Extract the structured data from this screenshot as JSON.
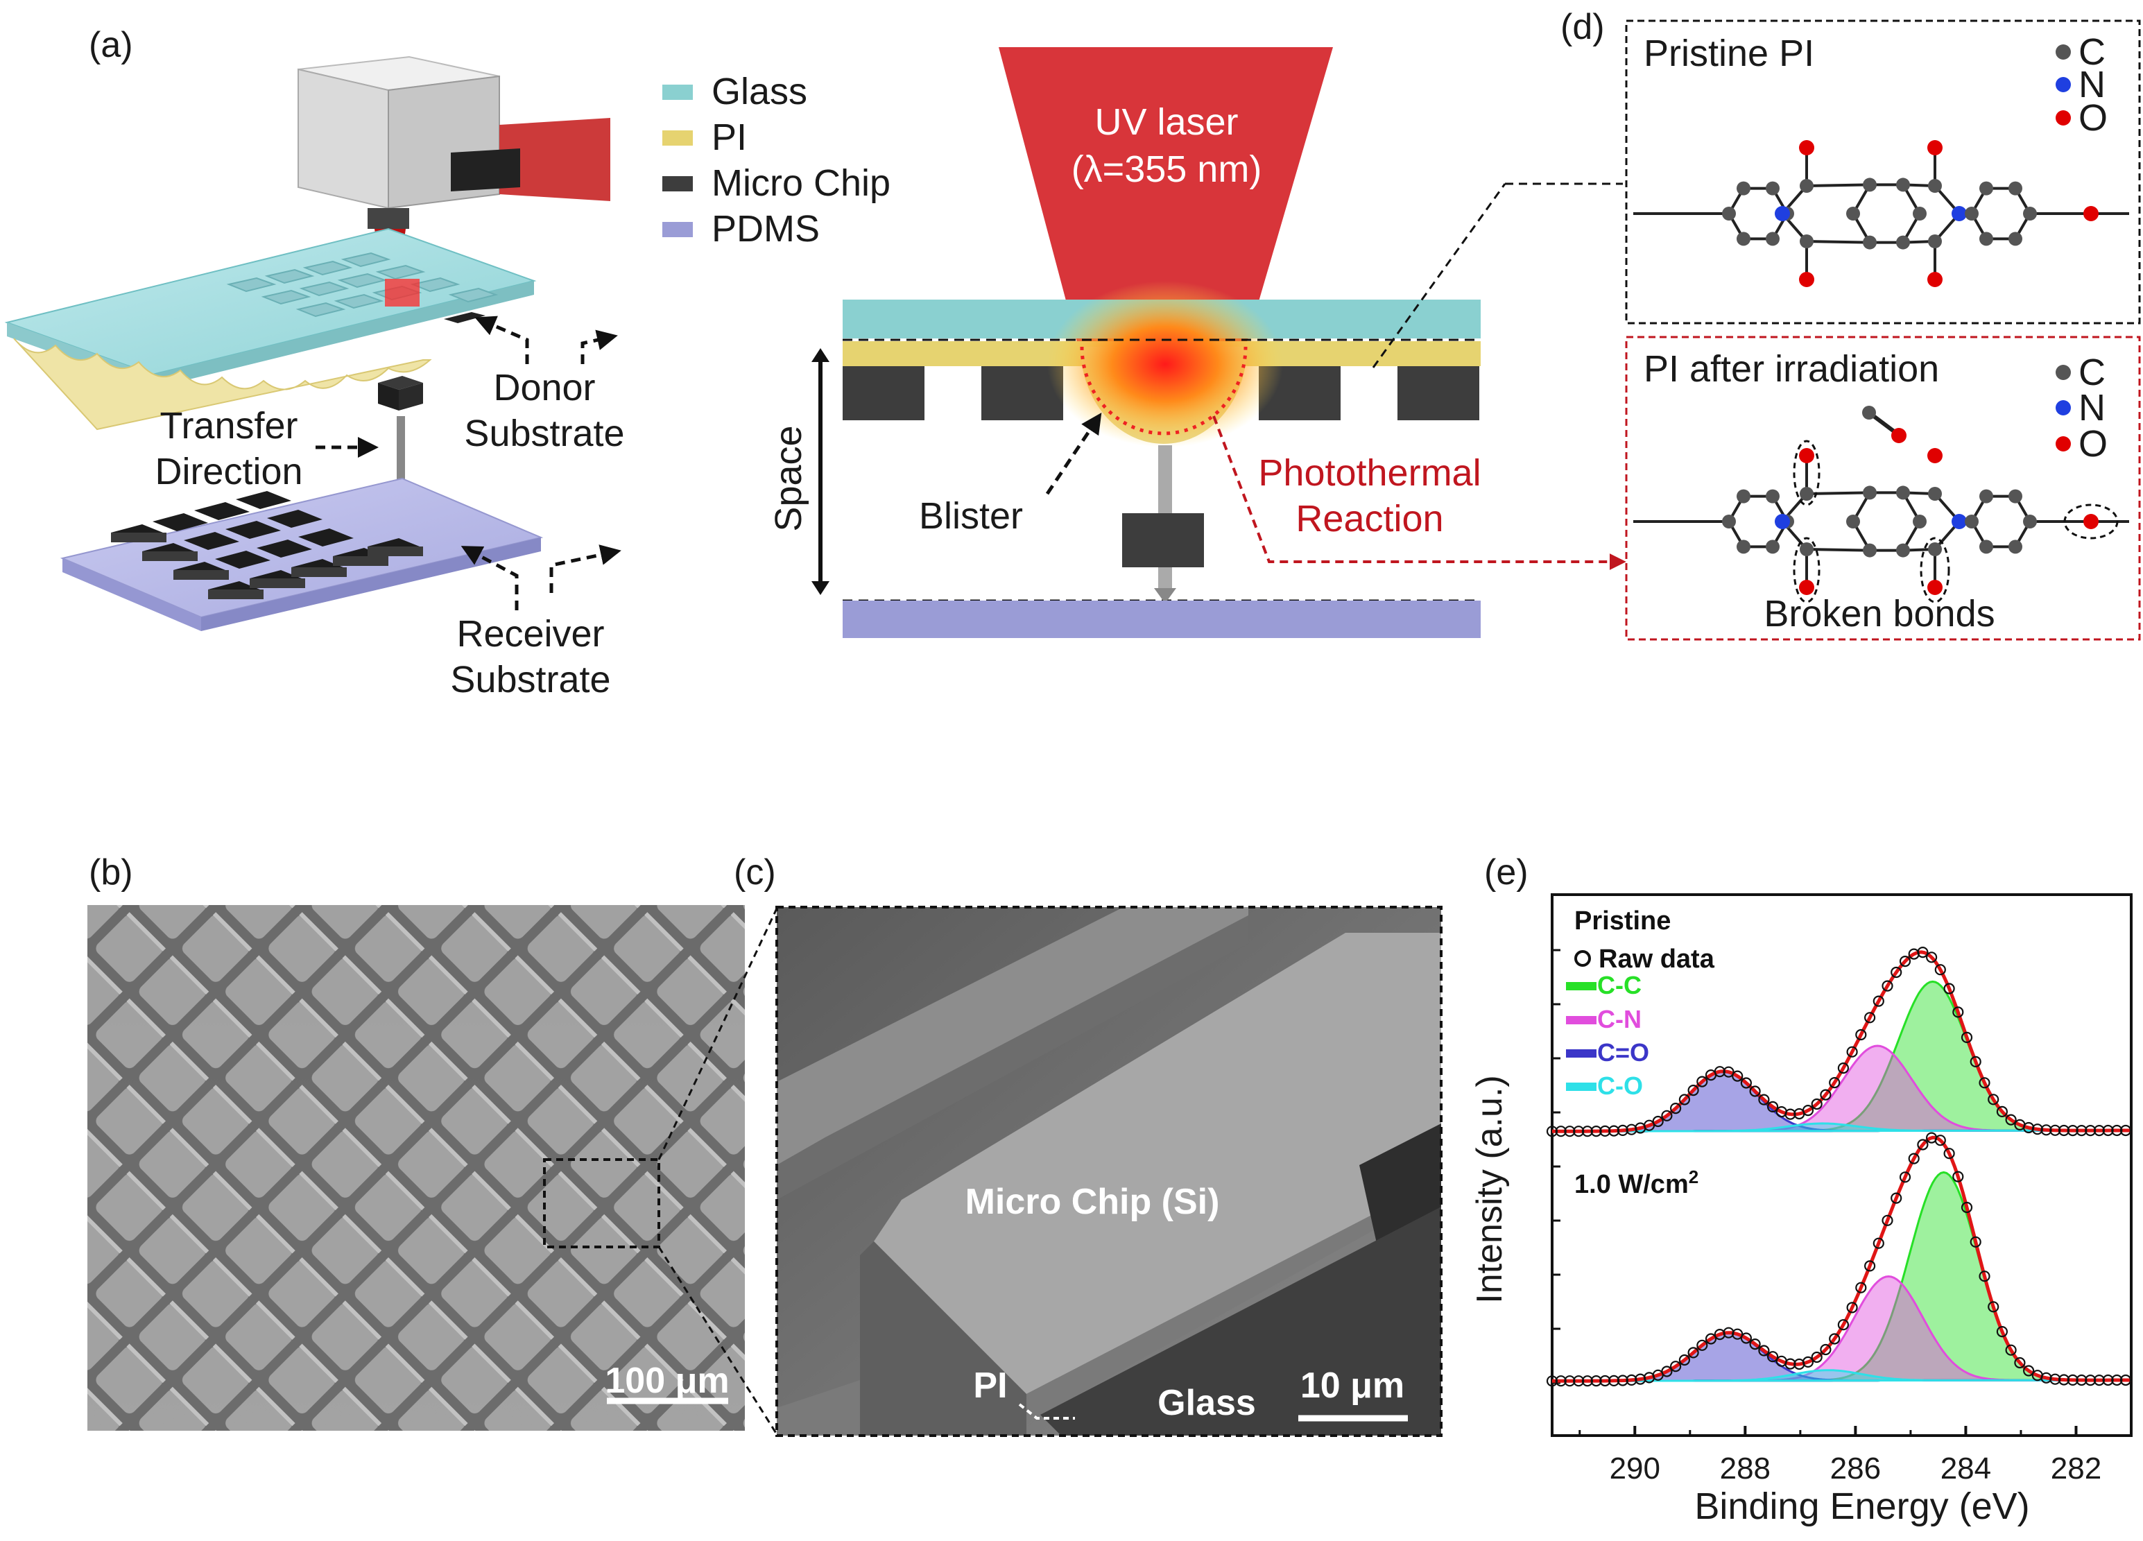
{
  "panels": {
    "a": "(a)",
    "b": "(b)",
    "c": "(c)",
    "d": "(d)",
    "e": "(e)"
  },
  "legend": {
    "glass": "Glass",
    "pi": "PI",
    "micro_chip": "Micro Chip",
    "pdms": "PDMS",
    "colors": {
      "glass": "#8ad0d0",
      "pi": "#e6d370",
      "micro_chip": "#3d3d3d",
      "pdms": "#9a9cd6"
    }
  },
  "panel_a": {
    "transfer_direction": [
      "Transfer",
      "Direction"
    ],
    "donor_substrate": [
      "Donor",
      "Substrate"
    ],
    "receiver_substrate": [
      "Receiver",
      "Substrate"
    ]
  },
  "schematic": {
    "laser": [
      "UV laser",
      "(λ=355 nm)"
    ],
    "space": "Space",
    "blister": "Blister",
    "reaction": [
      "Photothermal",
      "Reaction"
    ],
    "laser_color": "#d8353a"
  },
  "panel_d": {
    "pristine_title": "Pristine PI",
    "irradiated_title": "PI after irradiation",
    "broken_bonds": "Broken bonds",
    "atoms": [
      {
        "symbol": "C",
        "color": "#555555"
      },
      {
        "symbol": "N",
        "color": "#1f3fe0"
      },
      {
        "symbol": "O",
        "color": "#e00000"
      }
    ]
  },
  "panel_b": {
    "scale": "100 μm"
  },
  "panel_c": {
    "chip": "Micro Chip (Si)",
    "pi": "PI",
    "glass": "Glass",
    "scale": "10 μm"
  },
  "chart_data": {
    "type": "line",
    "title": "",
    "xlabel": "Binding Energy (eV)",
    "ylabel": "Intensity (a.u.)",
    "xlim": [
      291.5,
      281.0
    ],
    "x_ticks": [
      290,
      288,
      286,
      284,
      282
    ],
    "x_tick_labels": [
      "290",
      "288",
      "286",
      "284",
      "282"
    ],
    "legend": [
      {
        "label": "Raw data",
        "marker": "o",
        "color": "#000000"
      },
      {
        "label": "C-C",
        "color": "#27e027"
      },
      {
        "label": "C-N",
        "color": "#e14ddd"
      },
      {
        "label": "C=O",
        "color": "#3b36c8"
      },
      {
        "label": "C-O",
        "color": "#2ee0e8"
      }
    ],
    "spectra": [
      {
        "name": "Pristine",
        "peaks": [
          {
            "label": "C-C",
            "center": 284.6,
            "height": 1.0
          },
          {
            "label": "C-N",
            "center": 285.6,
            "height": 0.57
          },
          {
            "label": "C=O",
            "center": 288.4,
            "height": 0.4
          },
          {
            "label": "C-O",
            "center": 286.6,
            "height": 0.05
          }
        ]
      },
      {
        "name": "1.0 W/cm²",
        "name_base": "1.0 W/cm",
        "name_sup": "2",
        "peaks": [
          {
            "label": "C-C",
            "center": 284.4,
            "height": 1.0
          },
          {
            "label": "C-N",
            "center": 285.4,
            "height": 0.5
          },
          {
            "label": "C=O",
            "center": 288.3,
            "height": 0.23
          },
          {
            "label": "C-O",
            "center": 286.5,
            "height": 0.05
          }
        ]
      }
    ]
  }
}
